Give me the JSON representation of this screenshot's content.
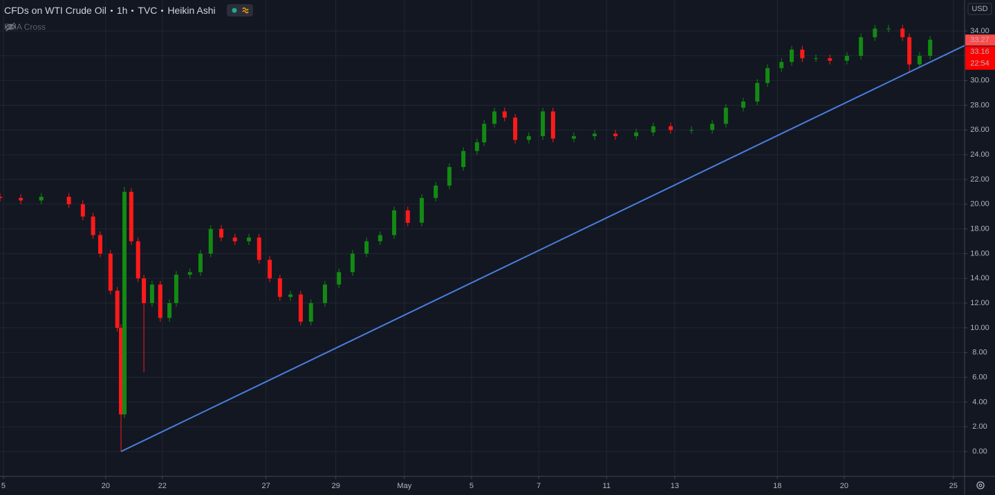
{
  "header": {
    "title": "CFDs on WTI Crude Oil",
    "interval": "1h",
    "source": "TVC",
    "style": "Heikin Ashi",
    "indicator": "EMA Cross"
  },
  "chart_data": {
    "type": "candlestick",
    "currency": "USD",
    "x": [
      -3.1,
      -2.49,
      -1.89,
      -1.08,
      -0.67,
      -0.37,
      -0.16,
      0.14,
      0.34,
      0.45,
      0.55,
      0.75,
      0.95,
      1.12,
      1.36,
      1.6,
      1.87,
      2.07,
      2.47,
      2.78,
      3.08,
      3.39,
      3.79,
      4.2,
      4.5,
      4.81,
      5.11,
      5.42,
      5.72,
      6.02,
      6.43,
      6.84,
      7.24,
      7.65,
      8.05,
      8.46,
      8.86,
      9.27,
      9.68,
      10.08,
      10.49,
      10.89,
      11.1,
      11.4,
      11.7,
      12.01,
      12.41,
      12.82,
      13.12,
      13.73,
      14.34,
      14.95,
      15.56,
      16.06,
      16.57,
      17.18,
      17.79,
      18.19,
      18.7,
      19.11,
      19.41,
      19.82,
      20.12,
      20.43,
      20.83,
      21.24,
      21.74,
      22.15,
      22.56,
      22.96,
      23.37,
      23.57,
      23.87,
      24.18
    ],
    "open": [
      20.6,
      20.5,
      20.3,
      20.6,
      20.0,
      19.0,
      17.5,
      16.0,
      13.0,
      10.0,
      3.0,
      21.0,
      17.0,
      14.0,
      12.0,
      13.5,
      10.8,
      12.0,
      14.3,
      14.5,
      16.0,
      18.0,
      17.3,
      17.0,
      17.3,
      15.5,
      14.0,
      12.5,
      12.7,
      10.5,
      12.0,
      13.5,
      14.5,
      16.0,
      17.0,
      17.5,
      19.5,
      18.5,
      20.5,
      21.5,
      23.0,
      24.3,
      25.0,
      26.5,
      27.5,
      27.0,
      25.2,
      25.5,
      27.5,
      25.3,
      25.5,
      25.7,
      25.5,
      25.8,
      26.3,
      26.0,
      26.0,
      26.5,
      27.8,
      28.3,
      29.8,
      31.0,
      31.5,
      32.5,
      31.8,
      31.8,
      31.6,
      32.0,
      33.5,
      34.2,
      34.2,
      33.5,
      31.3,
      32.0
    ],
    "high": [
      20.9,
      20.8,
      20.9,
      20.9,
      20.3,
      19.3,
      17.8,
      16.3,
      13.3,
      10.3,
      21.4,
      21.3,
      17.3,
      14.3,
      13.8,
      13.8,
      12.3,
      14.6,
      14.8,
      16.3,
      18.3,
      18.3,
      17.6,
      17.6,
      17.6,
      15.8,
      14.3,
      13.0,
      13.0,
      12.3,
      13.8,
      14.8,
      16.3,
      17.3,
      17.8,
      19.8,
      19.8,
      20.8,
      21.8,
      23.3,
      24.6,
      25.3,
      26.8,
      27.8,
      27.8,
      27.3,
      25.8,
      27.8,
      27.8,
      25.8,
      26.0,
      26.0,
      26.1,
      26.6,
      26.6,
      26.3,
      26.8,
      28.1,
      28.6,
      30.1,
      31.3,
      31.8,
      32.8,
      32.8,
      32.1,
      32.1,
      32.3,
      33.8,
      34.5,
      34.5,
      34.5,
      33.8,
      32.3,
      33.6
    ],
    "low": [
      20.2,
      20.0,
      20.0,
      19.7,
      18.7,
      17.2,
      15.7,
      12.7,
      9.7,
      0.0,
      2.7,
      16.7,
      13.7,
      6.4,
      11.7,
      10.5,
      10.5,
      11.7,
      14.0,
      14.2,
      15.7,
      17.0,
      16.7,
      16.7,
      15.2,
      13.7,
      12.2,
      12.2,
      10.2,
      10.2,
      11.7,
      13.2,
      14.2,
      15.7,
      16.7,
      17.2,
      18.2,
      18.2,
      20.2,
      21.2,
      22.7,
      24.0,
      24.7,
      26.2,
      26.7,
      24.9,
      24.9,
      25.2,
      25.0,
      25.0,
      25.2,
      25.2,
      25.2,
      25.5,
      25.7,
      25.7,
      25.7,
      26.2,
      27.5,
      28.0,
      29.5,
      30.7,
      31.2,
      31.5,
      31.5,
      31.3,
      31.3,
      31.7,
      33.2,
      33.9,
      33.2,
      30.6,
      31.0,
      31.7
    ],
    "close": [
      20.5,
      20.3,
      20.6,
      20.0,
      19.0,
      17.5,
      16.0,
      13.0,
      10.0,
      3.0,
      21.0,
      17.0,
      14.0,
      12.0,
      13.5,
      10.8,
      12.0,
      14.3,
      14.5,
      16.0,
      18.0,
      17.3,
      17.0,
      17.3,
      15.5,
      14.0,
      12.5,
      12.7,
      10.5,
      12.0,
      13.5,
      14.5,
      16.0,
      17.0,
      17.5,
      19.5,
      18.5,
      20.5,
      21.5,
      23.0,
      24.3,
      25.0,
      26.5,
      27.5,
      27.0,
      25.2,
      25.5,
      27.5,
      25.3,
      25.5,
      25.7,
      25.5,
      25.8,
      26.3,
      26.0,
      26.0,
      26.5,
      27.8,
      28.3,
      29.8,
      31.0,
      31.5,
      32.5,
      31.8,
      31.8,
      31.6,
      32.0,
      33.5,
      34.2,
      34.2,
      33.5,
      31.3,
      32.0,
      33.3
    ],
    "up_color": "#138a13",
    "down_color": "#ff1a1a",
    "xlim": [
      -3.1,
      25.19
    ],
    "xticks": [
      {
        "value": -3.0,
        "label": "5"
      },
      {
        "value": 0,
        "label": "20"
      },
      {
        "value": 1.66,
        "label": "22"
      },
      {
        "value": 4.7,
        "label": "27"
      },
      {
        "value": 6.75,
        "label": "29"
      },
      {
        "value": 8.76,
        "label": "May"
      },
      {
        "value": 10.73,
        "label": "5"
      },
      {
        "value": 12.7,
        "label": "7"
      },
      {
        "value": 14.69,
        "label": "11"
      },
      {
        "value": 16.69,
        "label": "13"
      },
      {
        "value": 19.7,
        "label": "18"
      },
      {
        "value": 21.66,
        "label": "20"
      },
      {
        "value": 24.86,
        "label": "25"
      }
    ],
    "ylim": [
      -2.01,
      36.51
    ],
    "yticks": [
      {
        "value": 0,
        "label": "0.00"
      },
      {
        "value": 2,
        "label": "2.00"
      },
      {
        "value": 4,
        "label": "4.00"
      },
      {
        "value": 6,
        "label": "6.00"
      },
      {
        "value": 8,
        "label": "8.00"
      },
      {
        "value": 10,
        "label": "10.00"
      },
      {
        "value": 12,
        "label": "12.00"
      },
      {
        "value": 14,
        "label": "14.00"
      },
      {
        "value": 16,
        "label": "16.00"
      },
      {
        "value": 18,
        "label": "18.00"
      },
      {
        "value": 20,
        "label": "20.00"
      },
      {
        "value": 22,
        "label": "22.00"
      },
      {
        "value": 24,
        "label": "24.00"
      },
      {
        "value": 26,
        "label": "26.00"
      },
      {
        "value": 28,
        "label": "28.00"
      },
      {
        "value": 30,
        "label": "30.00"
      },
      {
        "value": 32,
        "label": "32.00"
      },
      {
        "value": 34,
        "label": "34.00"
      }
    ],
    "grid": true,
    "trendline": {
      "x": [
        0.45,
        25.19
      ],
      "y": [
        0,
        32.83
      ],
      "color": "#4a7fdd"
    },
    "last_price": {
      "value": 33.27,
      "label": "33.27"
    },
    "bid_price": {
      "value": 33.16,
      "label": "33.16"
    },
    "countdown": "22:54"
  }
}
